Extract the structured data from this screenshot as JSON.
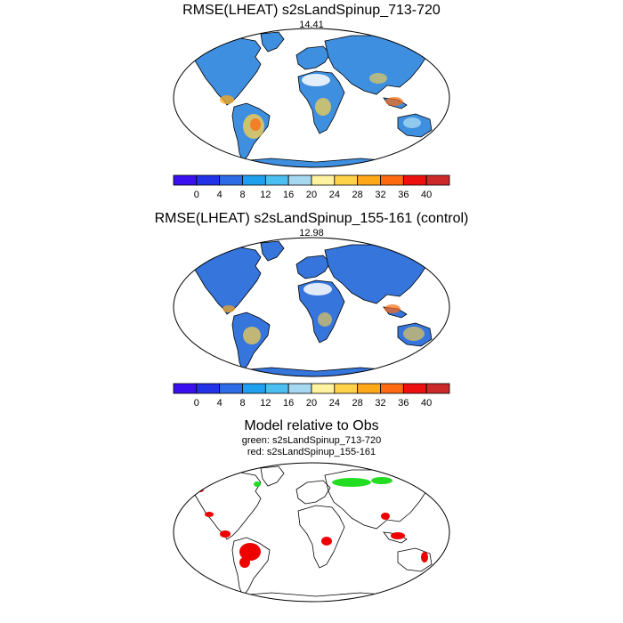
{
  "panels": [
    {
      "title": "RMSE(LHEAT) s2sLandSpinup_713-720",
      "value": "14.41"
    },
    {
      "title": "RMSE(LHEAT) s2sLandSpinup_155-161 (control)",
      "value": "12.98"
    },
    {
      "title": "Model relative to Obs",
      "line2": "green: s2sLandSpinup_713-720",
      "line3": "red: s2sLandSpinup_155-161"
    }
  ],
  "colorbar": {
    "labels": [
      "0",
      "4",
      "8",
      "12",
      "16",
      "20",
      "24",
      "28",
      "32",
      "36",
      "40"
    ],
    "colors": [
      "#3a10f0",
      "#2232e6",
      "#2e6be6",
      "#1ea0ee",
      "#4dbef2",
      "#a6d8f2",
      "#fff3a0",
      "#ffd24a",
      "#ffa81a",
      "#ff6a10",
      "#ee1010",
      "#cc2a2a"
    ]
  },
  "colors": {
    "green": "#22dd22",
    "red": "#ee0000"
  }
}
